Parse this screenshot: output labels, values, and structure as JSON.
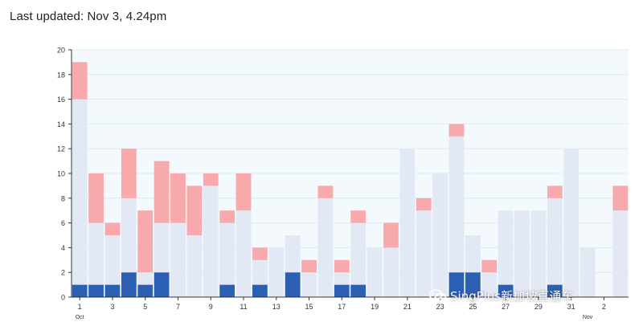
{
  "header": {
    "updated_label": "Last updated: Nov 3, 4.24pm"
  },
  "watermark": {
    "text": "SingPlus新加坡直通车"
  },
  "colors": {
    "dark": "#2b5fb4",
    "light": "#e3e8f5",
    "pink": "#f7a9ab",
    "grid": "#d6edf4",
    "plot_bg": "#f3f9fc"
  },
  "chart_data": {
    "type": "bar",
    "stacked": true,
    "title": "",
    "xlabel": "",
    "ylabel": "",
    "ylim": [
      0,
      20
    ],
    "y_ticks": [
      0,
      2,
      4,
      6,
      8,
      10,
      12,
      14,
      16,
      18,
      20
    ],
    "grid": true,
    "categories": [
      "Oct 1",
      "Oct 2",
      "Oct 3",
      "Oct 4",
      "Oct 5",
      "Oct 6",
      "Oct 7",
      "Oct 8",
      "Oct 9",
      "Oct 10",
      "Oct 11",
      "Oct 12",
      "Oct 13",
      "Oct 14",
      "Oct 15",
      "Oct 16",
      "Oct 17",
      "Oct 18",
      "Oct 19",
      "Oct 20",
      "Oct 21",
      "Oct 22",
      "Oct 23",
      "Oct 24",
      "Oct 25",
      "Oct 26",
      "Oct 27",
      "Oct 28",
      "Oct 29",
      "Oct 30",
      "Oct 31",
      "Nov 1",
      "Nov 2",
      "Nov 3"
    ],
    "x_tick_labels": [
      {
        "index": 0,
        "label": "1"
      },
      {
        "index": 2,
        "label": "3"
      },
      {
        "index": 4,
        "label": "5"
      },
      {
        "index": 6,
        "label": "7"
      },
      {
        "index": 8,
        "label": "9"
      },
      {
        "index": 10,
        "label": "11"
      },
      {
        "index": 12,
        "label": "13"
      },
      {
        "index": 14,
        "label": "15"
      },
      {
        "index": 16,
        "label": "17"
      },
      {
        "index": 18,
        "label": "19"
      },
      {
        "index": 20,
        "label": "21"
      },
      {
        "index": 22,
        "label": "23"
      },
      {
        "index": 24,
        "label": "25"
      },
      {
        "index": 26,
        "label": "27"
      },
      {
        "index": 28,
        "label": "29"
      },
      {
        "index": 30,
        "label": "31"
      },
      {
        "index": 32,
        "label": "2"
      }
    ],
    "month_labels": [
      {
        "index": 0,
        "label": "Oct"
      },
      {
        "index": 31,
        "label": "Nov"
      }
    ],
    "series": [
      {
        "color_key": "dark",
        "values": [
          1,
          1,
          1,
          2,
          1,
          2,
          0,
          0,
          0,
          1,
          0,
          1,
          0,
          2,
          0,
          0,
          1,
          1,
          0,
          0,
          0,
          0,
          0,
          2,
          2,
          0,
          1,
          0,
          0,
          1,
          0,
          0,
          0,
          0
        ]
      },
      {
        "color_key": "light",
        "values": [
          15,
          5,
          4,
          6,
          1,
          4,
          6,
          5,
          9,
          5,
          7,
          2,
          4,
          3,
          2,
          8,
          1,
          5,
          4,
          4,
          12,
          7,
          10,
          11,
          3,
          2,
          6,
          7,
          7,
          7,
          12,
          4,
          0,
          7
        ]
      },
      {
        "color_key": "pink",
        "values": [
          3,
          4,
          1,
          4,
          5,
          5,
          4,
          4,
          1,
          1,
          3,
          1,
          0,
          0,
          1,
          1,
          1,
          1,
          0,
          2,
          0,
          1,
          0,
          1,
          0,
          1,
          0,
          0,
          0,
          1,
          0,
          0,
          0,
          2
        ]
      }
    ]
  }
}
